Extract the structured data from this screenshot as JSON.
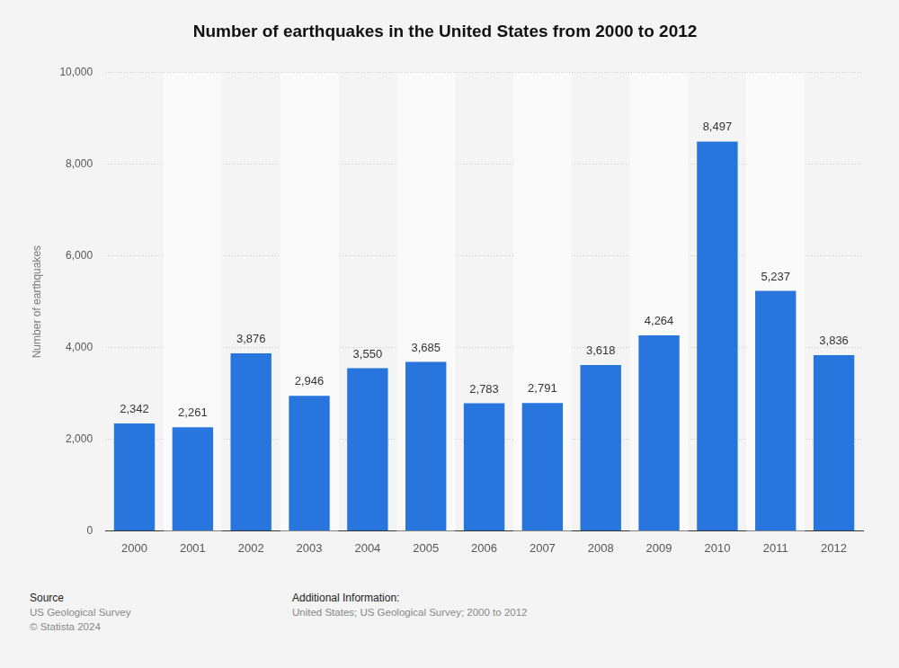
{
  "chart_data": {
    "type": "bar",
    "title": "Number of earthquakes in the United States from 2000 to 2012",
    "y_label": "Number of earthquakes",
    "categories": [
      "2000",
      "2001",
      "2002",
      "2003",
      "2004",
      "2005",
      "2006",
      "2007",
      "2008",
      "2009",
      "2010",
      "2011",
      "2012"
    ],
    "values": [
      2342,
      2261,
      3876,
      2946,
      3550,
      3685,
      2783,
      2791,
      3618,
      4264,
      8497,
      5237,
      3836
    ],
    "value_labels": [
      "2,342",
      "2,261",
      "3,876",
      "2,946",
      "3,550",
      "3,685",
      "2,783",
      "2,791",
      "3,618",
      "4,264",
      "8,497",
      "5,237",
      "3,836"
    ],
    "color": "#2876dd",
    "ylim": [
      0,
      10000
    ],
    "yticks": [
      0,
      {
        "value": 2000,
        "label": "2,000"
      },
      {
        "value": 4000,
        "label": "4,000"
      },
      {
        "value": 6000,
        "label": "6,000"
      },
      {
        "value": 8000,
        "label": "8,000"
      },
      {
        "value": 10000,
        "label": "10,000"
      }
    ],
    "grid": true,
    "data_labels": true,
    "source": {
      "heading": "Source",
      "lines": [
        "US Geological Survey",
        "© Statista 2024"
      ]
    },
    "additional_information": {
      "heading": "Additional Information:",
      "lines": [
        "United States; US Geological Survey; 2000 to 2012"
      ]
    }
  }
}
